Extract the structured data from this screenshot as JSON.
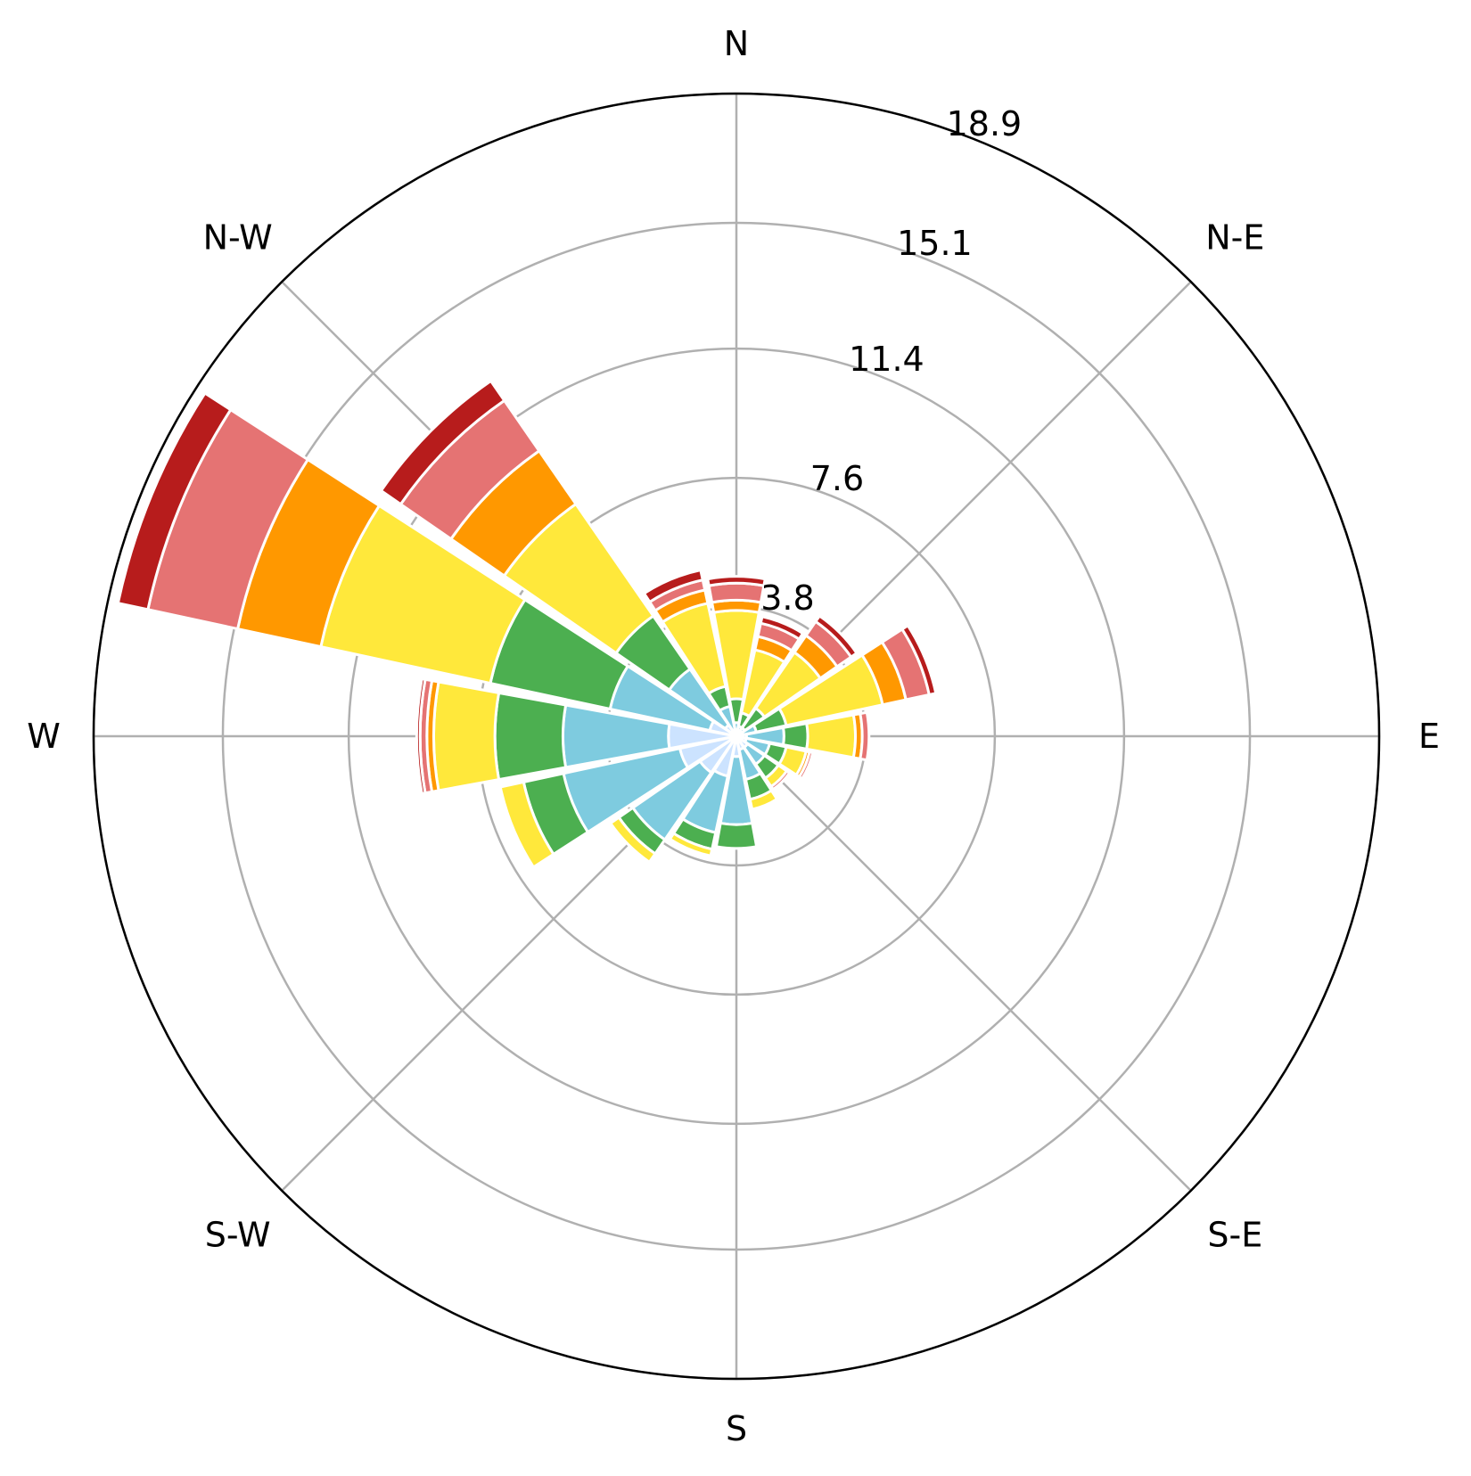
{
  "chart_data": {
    "type": "windrose",
    "title": "",
    "direction_labels": [
      "N",
      "N-E",
      "E",
      "S-E",
      "S",
      "S-W",
      "W",
      "N-W"
    ],
    "radial_ticks": [
      "3.8",
      "7.6",
      "11.4",
      "15.1",
      "18.9"
    ],
    "radial_tick_values": [
      3.8,
      7.6,
      11.4,
      15.1,
      18.9
    ],
    "rmax": 18.9,
    "grid": true,
    "legend": "none",
    "sector_count": 16,
    "sector_directions_deg": [
      0,
      22.5,
      45,
      67.5,
      90,
      112.5,
      135,
      157.5,
      180,
      202.5,
      225,
      247.5,
      270,
      292.5,
      315,
      337.5
    ],
    "bins": [
      {
        "color": "#cce3ff"
      },
      {
        "color": "#7ecbdf"
      },
      {
        "color": "#4caf50"
      },
      {
        "color": "#ffe83b"
      },
      {
        "color": "#ff9800"
      },
      {
        "color": "#e57373"
      },
      {
        "color": "#b71c1c"
      }
    ],
    "cumulative": [
      [
        0.1,
        0.4,
        1.1,
        3.7,
        4.0,
        4.5,
        4.7
      ],
      [
        0.1,
        0.3,
        0.7,
        2.6,
        3.0,
        3.4,
        3.6
      ],
      [
        0.1,
        0.3,
        1.0,
        3.0,
        3.6,
        4.1,
        4.3
      ],
      [
        0.2,
        0.6,
        1.5,
        4.4,
        5.1,
        5.8,
        6.0
      ],
      [
        0.3,
        1.4,
        2.1,
        3.5,
        3.7,
        3.9,
        3.9
      ],
      [
        0.3,
        1.0,
        1.5,
        2.1,
        2.2,
        2.3,
        2.3
      ],
      [
        0.4,
        1.0,
        1.5,
        1.8,
        1.8,
        1.9,
        1.9
      ],
      [
        0.4,
        1.3,
        1.9,
        2.2,
        2.2,
        2.2,
        2.2
      ],
      [
        0.6,
        2.6,
        3.3,
        3.3,
        3.3,
        3.3,
        3.3
      ],
      [
        1.2,
        2.9,
        3.4,
        3.6,
        3.6,
        3.6,
        3.6
      ],
      [
        1.3,
        3.7,
        4.2,
        4.5,
        4.5,
        4.5,
        4.5
      ],
      [
        1.7,
        5.2,
        6.4,
        7.1,
        7.1,
        7.1,
        7.1
      ],
      [
        2.0,
        5.1,
        7.1,
        8.9,
        9.1,
        9.3,
        9.4
      ],
      [
        0.8,
        3.8,
        7.4,
        12.5,
        15.0,
        17.7,
        18.6
      ],
      [
        0.4,
        2.4,
        4.3,
        8.3,
        10.2,
        12.0,
        12.7
      ],
      [
        0.2,
        0.9,
        1.5,
        4.0,
        4.4,
        4.7,
        5.0
      ]
    ]
  }
}
